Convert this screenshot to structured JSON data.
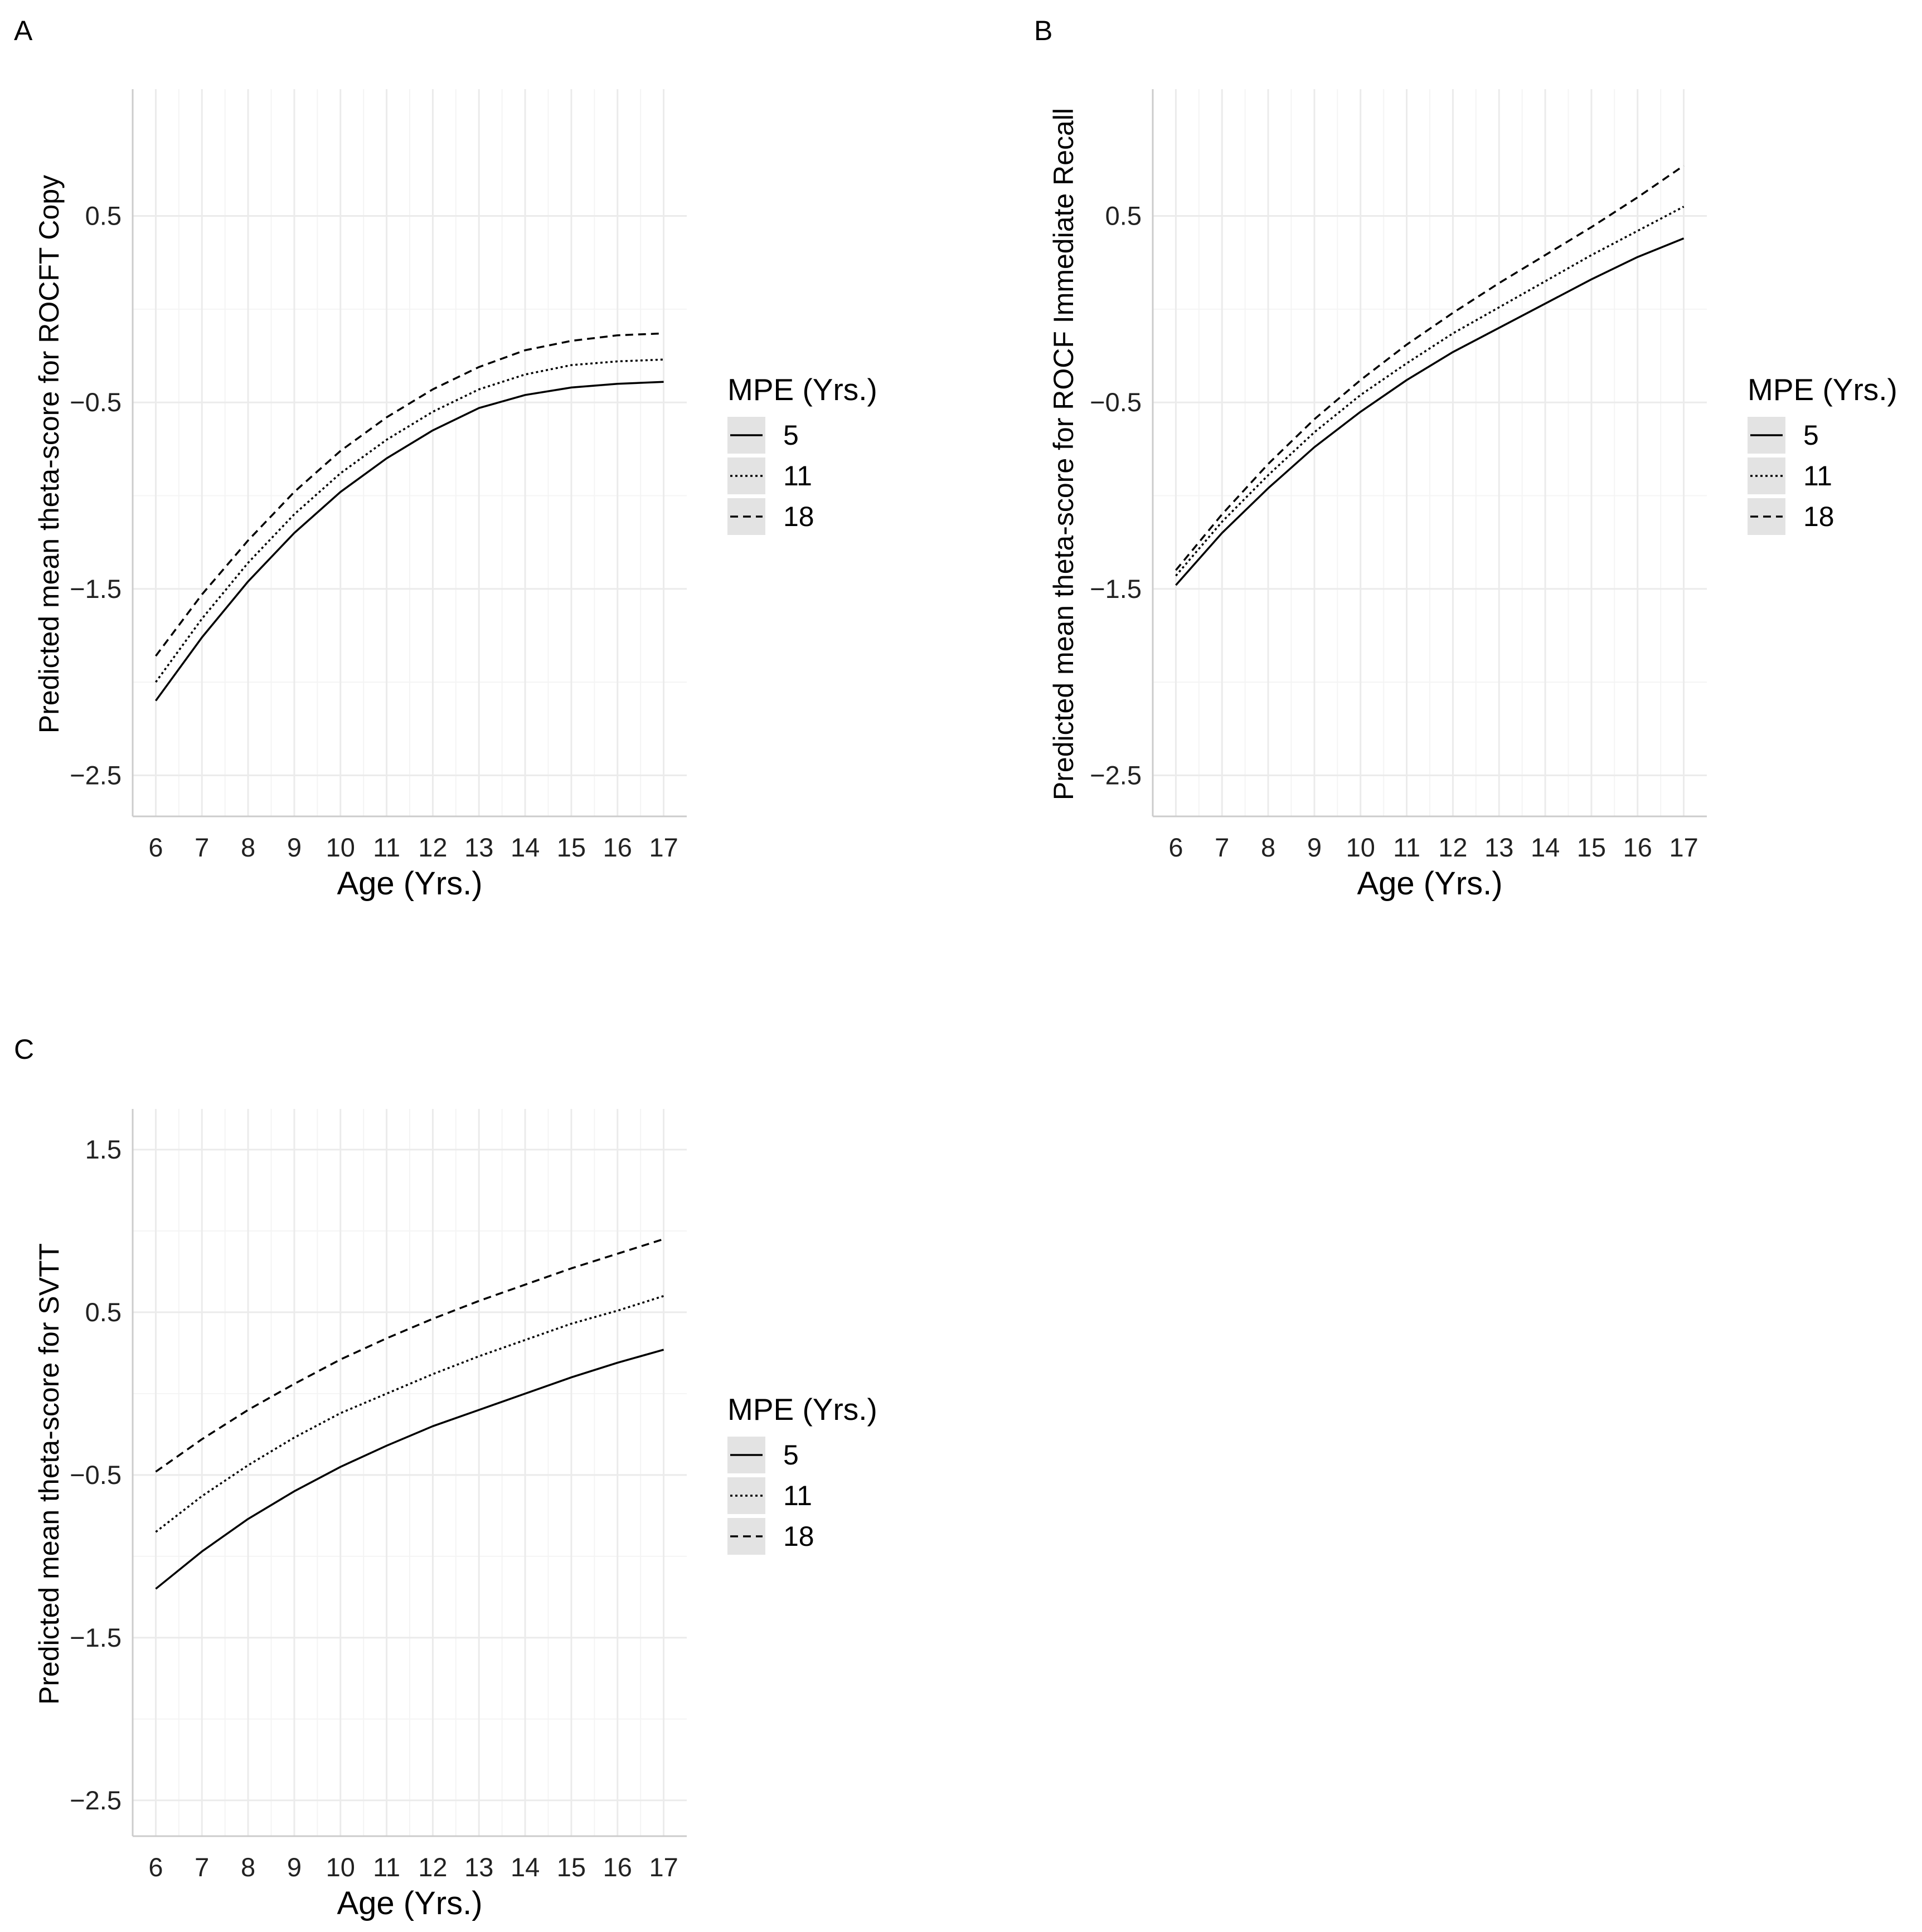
{
  "chart_data": [
    {
      "type": "line",
      "panel": "A",
      "xlabel": "Age (Yrs.)",
      "ylabel": "Predicted mean theta-score for ROCFT Copy",
      "x": [
        6,
        7,
        8,
        9,
        10,
        11,
        12,
        13,
        14,
        15,
        16,
        17
      ],
      "xlim": [
        5.5,
        17.5
      ],
      "ylim": [
        -2.72,
        1.18
      ],
      "yticks": [
        0.5,
        -0.5,
        -1.5,
        -2.5
      ],
      "ytick_labels": [
        "0.5",
        "−0.5",
        "−1.5",
        "−2.5"
      ],
      "grid": true,
      "series": [
        {
          "name": "5",
          "linetype": "solid",
          "values": [
            -2.1,
            -1.76,
            -1.46,
            -1.2,
            -0.98,
            -0.8,
            -0.65,
            -0.53,
            -0.46,
            -0.42,
            -0.4,
            -0.39
          ]
        },
        {
          "name": "11",
          "linetype": "dotted",
          "values": [
            -2.0,
            -1.66,
            -1.36,
            -1.1,
            -0.88,
            -0.7,
            -0.55,
            -0.43,
            -0.35,
            -0.3,
            -0.28,
            -0.27
          ]
        },
        {
          "name": "18",
          "linetype": "dashed",
          "values": [
            -1.86,
            -1.53,
            -1.24,
            -0.98,
            -0.76,
            -0.58,
            -0.43,
            -0.31,
            -0.22,
            -0.17,
            -0.14,
            -0.13
          ]
        }
      ],
      "legend": {
        "title": "MPE (Yrs.)",
        "position": "right"
      }
    },
    {
      "type": "line",
      "panel": "B",
      "xlabel": "Age (Yrs.)",
      "ylabel": "Predicted mean theta-score for ROCF Immediate Recall",
      "x": [
        6,
        7,
        8,
        9,
        10,
        11,
        12,
        13,
        14,
        15,
        16,
        17
      ],
      "xlim": [
        5.5,
        17.5
      ],
      "ylim": [
        -2.72,
        1.18
      ],
      "yticks": [
        0.5,
        -0.5,
        -1.5,
        -2.5
      ],
      "ytick_labels": [
        "0.5",
        "−0.5",
        "−1.5",
        "−2.5"
      ],
      "grid": true,
      "series": [
        {
          "name": "5",
          "linetype": "solid",
          "values": [
            -1.48,
            -1.2,
            -0.96,
            -0.74,
            -0.55,
            -0.38,
            -0.23,
            -0.1,
            0.03,
            0.16,
            0.28,
            0.38
          ]
        },
        {
          "name": "11",
          "linetype": "dotted",
          "values": [
            -1.43,
            -1.14,
            -0.89,
            -0.66,
            -0.46,
            -0.29,
            -0.13,
            0.01,
            0.15,
            0.29,
            0.42,
            0.55
          ]
        },
        {
          "name": "18",
          "linetype": "dashed",
          "values": [
            -1.4,
            -1.1,
            -0.83,
            -0.59,
            -0.38,
            -0.19,
            -0.02,
            0.14,
            0.29,
            0.44,
            0.6,
            0.77
          ]
        }
      ],
      "legend": {
        "title": "MPE (Yrs.)",
        "position": "right"
      }
    },
    {
      "type": "line",
      "panel": "C",
      "xlabel": "Age (Yrs.)",
      "ylabel": "Predicted mean theta-score for SVTT",
      "x": [
        6,
        7,
        8,
        9,
        10,
        11,
        12,
        13,
        14,
        15,
        16,
        17
      ],
      "xlim": [
        5.5,
        17.5
      ],
      "ylim": [
        -2.72,
        1.75
      ],
      "yticks": [
        1.5,
        0.5,
        -0.5,
        -1.5,
        -2.5
      ],
      "ytick_labels": [
        "1.5",
        "0.5",
        "−0.5",
        "−1.5",
        "−2.5"
      ],
      "grid": true,
      "series": [
        {
          "name": "5",
          "linetype": "solid",
          "values": [
            -1.2,
            -0.97,
            -0.77,
            -0.6,
            -0.45,
            -0.32,
            -0.2,
            -0.1,
            0.0,
            0.1,
            0.19,
            0.27
          ]
        },
        {
          "name": "11",
          "linetype": "dotted",
          "values": [
            -0.85,
            -0.63,
            -0.44,
            -0.27,
            -0.12,
            0.0,
            0.12,
            0.23,
            0.33,
            0.43,
            0.51,
            0.6
          ]
        },
        {
          "name": "18",
          "linetype": "dashed",
          "values": [
            -0.48,
            -0.28,
            -0.1,
            0.06,
            0.21,
            0.34,
            0.46,
            0.57,
            0.67,
            0.77,
            0.86,
            0.95
          ]
        }
      ],
      "legend": {
        "title": "MPE (Yrs.)",
        "position": "right"
      }
    }
  ],
  "colors": {
    "line": "#000000",
    "grid_major": "#ebebeb",
    "grid_minor": "#f4f4f4",
    "legend_key_bg": "#e3e3e3",
    "axis": "#cccccc"
  }
}
